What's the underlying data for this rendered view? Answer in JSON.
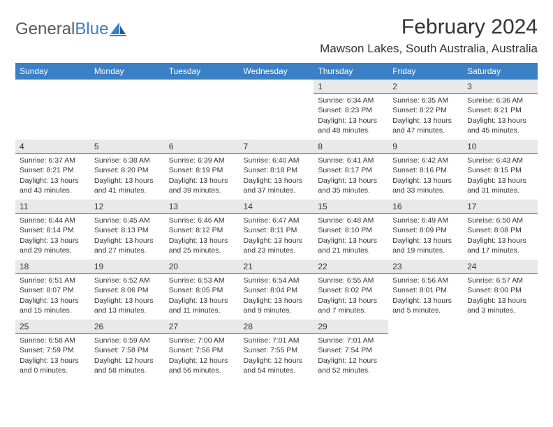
{
  "logo": {
    "text1": "General",
    "text2": "Blue"
  },
  "title": "February 2024",
  "location": "Mawson Lakes, South Australia, Australia",
  "colors": {
    "header_bg": "#3b7fc4",
    "header_text": "#ffffff",
    "daybar_bg": "#e9e9e9",
    "daybar_border": "#3b5a7a",
    "text": "#333333",
    "logo_gray": "#5a5a5a",
    "logo_blue": "#3b7fc4",
    "page_bg": "#ffffff"
  },
  "weekdays": [
    "Sunday",
    "Monday",
    "Tuesday",
    "Wednesday",
    "Thursday",
    "Friday",
    "Saturday"
  ],
  "weeks": [
    [
      null,
      null,
      null,
      null,
      {
        "n": "1",
        "sr": "6:34 AM",
        "ss": "8:23 PM",
        "dh": "13",
        "dm": "48"
      },
      {
        "n": "2",
        "sr": "6:35 AM",
        "ss": "8:22 PM",
        "dh": "13",
        "dm": "47"
      },
      {
        "n": "3",
        "sr": "6:36 AM",
        "ss": "8:21 PM",
        "dh": "13",
        "dm": "45"
      }
    ],
    [
      {
        "n": "4",
        "sr": "6:37 AM",
        "ss": "8:21 PM",
        "dh": "13",
        "dm": "43"
      },
      {
        "n": "5",
        "sr": "6:38 AM",
        "ss": "8:20 PM",
        "dh": "13",
        "dm": "41"
      },
      {
        "n": "6",
        "sr": "6:39 AM",
        "ss": "8:19 PM",
        "dh": "13",
        "dm": "39"
      },
      {
        "n": "7",
        "sr": "6:40 AM",
        "ss": "8:18 PM",
        "dh": "13",
        "dm": "37"
      },
      {
        "n": "8",
        "sr": "6:41 AM",
        "ss": "8:17 PM",
        "dh": "13",
        "dm": "35"
      },
      {
        "n": "9",
        "sr": "6:42 AM",
        "ss": "8:16 PM",
        "dh": "13",
        "dm": "33"
      },
      {
        "n": "10",
        "sr": "6:43 AM",
        "ss": "8:15 PM",
        "dh": "13",
        "dm": "31"
      }
    ],
    [
      {
        "n": "11",
        "sr": "6:44 AM",
        "ss": "8:14 PM",
        "dh": "13",
        "dm": "29"
      },
      {
        "n": "12",
        "sr": "6:45 AM",
        "ss": "8:13 PM",
        "dh": "13",
        "dm": "27"
      },
      {
        "n": "13",
        "sr": "6:46 AM",
        "ss": "8:12 PM",
        "dh": "13",
        "dm": "25"
      },
      {
        "n": "14",
        "sr": "6:47 AM",
        "ss": "8:11 PM",
        "dh": "13",
        "dm": "23"
      },
      {
        "n": "15",
        "sr": "6:48 AM",
        "ss": "8:10 PM",
        "dh": "13",
        "dm": "21"
      },
      {
        "n": "16",
        "sr": "6:49 AM",
        "ss": "8:09 PM",
        "dh": "13",
        "dm": "19"
      },
      {
        "n": "17",
        "sr": "6:50 AM",
        "ss": "8:08 PM",
        "dh": "13",
        "dm": "17"
      }
    ],
    [
      {
        "n": "18",
        "sr": "6:51 AM",
        "ss": "8:07 PM",
        "dh": "13",
        "dm": "15"
      },
      {
        "n": "19",
        "sr": "6:52 AM",
        "ss": "8:06 PM",
        "dh": "13",
        "dm": "13"
      },
      {
        "n": "20",
        "sr": "6:53 AM",
        "ss": "8:05 PM",
        "dh": "13",
        "dm": "11"
      },
      {
        "n": "21",
        "sr": "6:54 AM",
        "ss": "8:04 PM",
        "dh": "13",
        "dm": "9"
      },
      {
        "n": "22",
        "sr": "6:55 AM",
        "ss": "8:02 PM",
        "dh": "13",
        "dm": "7"
      },
      {
        "n": "23",
        "sr": "6:56 AM",
        "ss": "8:01 PM",
        "dh": "13",
        "dm": "5"
      },
      {
        "n": "24",
        "sr": "6:57 AM",
        "ss": "8:00 PM",
        "dh": "13",
        "dm": "3"
      }
    ],
    [
      {
        "n": "25",
        "sr": "6:58 AM",
        "ss": "7:59 PM",
        "dh": "13",
        "dm": "0"
      },
      {
        "n": "26",
        "sr": "6:59 AM",
        "ss": "7:58 PM",
        "dh": "12",
        "dm": "58"
      },
      {
        "n": "27",
        "sr": "7:00 AM",
        "ss": "7:56 PM",
        "dh": "12",
        "dm": "56"
      },
      {
        "n": "28",
        "sr": "7:01 AM",
        "ss": "7:55 PM",
        "dh": "12",
        "dm": "54"
      },
      {
        "n": "29",
        "sr": "7:01 AM",
        "ss": "7:54 PM",
        "dh": "12",
        "dm": "52"
      },
      null,
      null
    ]
  ],
  "labels": {
    "sunrise": "Sunrise:",
    "sunset": "Sunset:",
    "daylight_prefix": "Daylight:",
    "hours_word": "hours",
    "and_word": "and",
    "minutes_word": "minutes."
  }
}
